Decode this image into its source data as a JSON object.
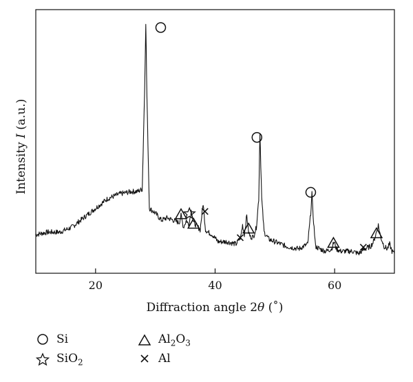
{
  "chart_data": {
    "type": "line",
    "title": "",
    "xlabel": "Diffraction angle 2θ (°)",
    "xlabel_parts": {
      "pre": "Diffraction angle 2",
      "theta": "θ",
      "post": " (˚)"
    },
    "ylabel_parts": {
      "pre": "Intensity ",
      "italic": "I",
      "post": " (a.u.)"
    },
    "xlim": [
      10,
      70
    ],
    "ylim": [
      0,
      100
    ],
    "xticks": [
      20,
      40,
      60
    ],
    "yticks_labeled": false,
    "grid": false,
    "legend_placement": "bottom-left",
    "series": [
      {
        "x": [
          10,
          12,
          14,
          16,
          18,
          20,
          22,
          24,
          26,
          27,
          27.8,
          28.2,
          28.4,
          28.6,
          29.0,
          30,
          31,
          32,
          33,
          34,
          34.3,
          34.7,
          35.2,
          35.6,
          36.0,
          36.4,
          36.8,
          37.5,
          38.0,
          38.4,
          38.8,
          39.5,
          40.5,
          42,
          43.5,
          44.3,
          44.6,
          44.9,
          45.3,
          45.6,
          45.9,
          46.4,
          46.9,
          47.3,
          47.5,
          47.8,
          48.2,
          49,
          50,
          52,
          54,
          55.5,
          56.0,
          56.2,
          56.4,
          56.8,
          57.5,
          58.5,
          59.5,
          59.9,
          60.3,
          61,
          62,
          63,
          64,
          65,
          66,
          66.5,
          67.0,
          67.3,
          67.7,
          68.3,
          68.8,
          69.2,
          69.6,
          70
        ],
        "y": [
          9,
          10,
          10,
          12,
          16,
          20,
          24,
          26,
          27,
          27,
          28,
          68,
          98,
          66,
          20,
          18,
          15,
          16,
          15,
          14,
          17,
          12,
          15,
          13,
          19,
          14,
          13,
          11,
          22,
          11,
          10,
          9,
          6,
          6,
          5,
          8,
          13,
          9,
          17,
          10,
          8,
          8,
          12,
          24,
          52,
          24,
          10,
          7,
          6,
          4,
          3,
          5,
          18,
          26,
          17,
          4,
          3,
          2,
          3,
          6,
          3,
          2,
          2,
          2,
          1,
          3,
          4,
          6,
          10,
          13,
          8,
          4,
          3,
          5,
          2,
          1
        ]
      }
    ],
    "annotations": [
      {
        "marker": "circle",
        "x": 30.9,
        "y": 100,
        "phase": "Si"
      },
      {
        "marker": "circle",
        "x": 47.0,
        "y": 54,
        "phase": "Si"
      },
      {
        "marker": "circle",
        "x": 56.0,
        "y": 31,
        "phase": "Si"
      },
      {
        "marker": "triangle",
        "x": 34.3,
        "y": 22,
        "phase": "Al2O3"
      },
      {
        "marker": "star",
        "x": 35.7,
        "y": 22,
        "phase": "SiO2"
      },
      {
        "marker": "triangle",
        "x": 36.4,
        "y": 18,
        "phase": "Al2O3"
      },
      {
        "marker": "cross",
        "x": 38.3,
        "y": 23,
        "phase": "Al"
      },
      {
        "marker": "triangle",
        "x": 45.6,
        "y": 16,
        "phase": "Al2O3"
      },
      {
        "marker": "cross",
        "x": 44.2,
        "y": 12,
        "phase": "Al"
      },
      {
        "marker": "triangle",
        "x": 59.8,
        "y": 10,
        "phase": "Al2O3"
      },
      {
        "marker": "cross",
        "x": 64.8,
        "y": 8,
        "phase": "Al"
      },
      {
        "marker": "triangle",
        "x": 67.0,
        "y": 14,
        "phase": "Al2O3"
      }
    ],
    "legend": [
      {
        "marker": "circle",
        "name": "Si",
        "label_main": "Si",
        "label_sub": "",
        "label_tail": ""
      },
      {
        "marker": "star",
        "name": "SiO2",
        "label_main": "SiO",
        "label_sub": "2",
        "label_tail": ""
      },
      {
        "marker": "triangle",
        "name": "Al2O3",
        "label_main": "Al",
        "label_sub": "2",
        "label_tail": "O",
        "label_sub2": "3"
      },
      {
        "marker": "cross",
        "name": "Al",
        "label_main": "Al",
        "label_sub": "",
        "label_tail": ""
      }
    ],
    "colors": {
      "line": "#111111",
      "marker": "#111111",
      "axis": "#111111"
    }
  }
}
